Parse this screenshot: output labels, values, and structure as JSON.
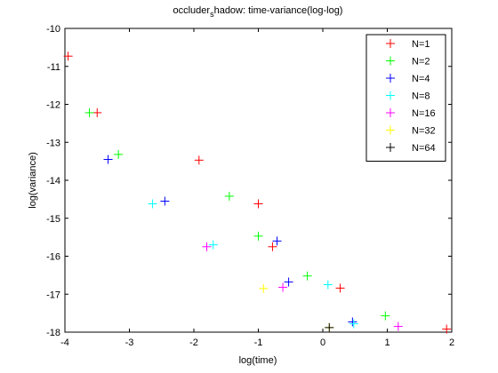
{
  "chart_data": {
    "type": "scatter",
    "title_main": "occluder",
    "title_sub": "s",
    "title_rest": "hadow: time-variance(log-log)",
    "xlabel": "log(time)",
    "ylabel": "log(variance)",
    "xlim": [
      -4,
      2
    ],
    "ylim": [
      -18,
      -10
    ],
    "xticks": [
      -4,
      -3,
      -2,
      -1,
      0,
      1,
      2
    ],
    "yticks": [
      -18,
      -17,
      -16,
      -15,
      -14,
      -13,
      -12,
      -11,
      -10
    ],
    "grid": false,
    "legend_position": "top-right",
    "marker": "+",
    "series": [
      {
        "name": "N=1",
        "color": "#ff0000",
        "points": [
          [
            -3.95,
            -10.73
          ],
          [
            -3.5,
            -12.22
          ],
          [
            -1.92,
            -13.47
          ],
          [
            -1.0,
            -14.62
          ],
          [
            -0.78,
            -15.75
          ],
          [
            0.27,
            -16.84
          ],
          [
            1.92,
            -17.92
          ]
        ]
      },
      {
        "name": "N=2",
        "color": "#00ff00",
        "points": [
          [
            -3.62,
            -12.22
          ],
          [
            -3.17,
            -13.32
          ],
          [
            -1.45,
            -14.42
          ],
          [
            -1.0,
            -15.47
          ],
          [
            -0.24,
            -16.52
          ],
          [
            0.97,
            -17.57
          ]
        ]
      },
      {
        "name": "N=4",
        "color": "#0000ff",
        "points": [
          [
            -3.33,
            -13.45
          ],
          [
            -2.45,
            -14.55
          ],
          [
            -0.71,
            -15.6
          ],
          [
            -0.53,
            -16.68
          ],
          [
            0.46,
            -17.73
          ]
        ]
      },
      {
        "name": "N=8",
        "color": "#00ffff",
        "points": [
          [
            -2.64,
            -14.62
          ],
          [
            -1.7,
            -15.7
          ],
          [
            0.08,
            -16.75
          ],
          [
            0.48,
            -17.78
          ]
        ]
      },
      {
        "name": "N=16",
        "color": "#ff00ff",
        "points": [
          [
            -1.8,
            -15.75
          ],
          [
            -0.62,
            -16.82
          ],
          [
            1.17,
            -17.85
          ]
        ]
      },
      {
        "name": "N=32",
        "color": "#ffff00",
        "points": [
          [
            -0.92,
            -16.85
          ],
          [
            0.1,
            -17.88
          ]
        ]
      },
      {
        "name": "N=64",
        "color": "#000000",
        "points": [
          [
            0.1,
            -17.88
          ]
        ]
      }
    ]
  }
}
